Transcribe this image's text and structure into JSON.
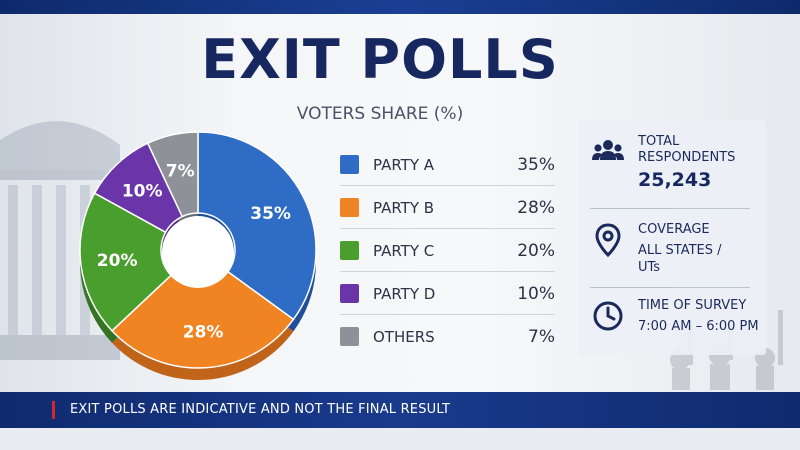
{
  "title": "EXIT POLLS",
  "chart_data": {
    "type": "pie",
    "title": "VOTERS SHARE (%)",
    "donut": true,
    "categories": [
      "PARTY A",
      "PARTY B",
      "PARTY C",
      "PARTY D",
      "OTHERS"
    ],
    "values": [
      35,
      28,
      20,
      10,
      7
    ],
    "labels": [
      "35%",
      "28%",
      "20%",
      "10%",
      "7%"
    ],
    "colors": [
      "#2f6cc6",
      "#f08423",
      "#4a9e2e",
      "#6a35a8",
      "#8e9197"
    ],
    "shadow_colors": [
      "#1f4f9a",
      "#c0641a",
      "#357423",
      "#4d2580",
      "#6a6d72"
    ],
    "legend_position": "right"
  },
  "stats": {
    "respondents": {
      "label_line1": "TOTAL",
      "label_line2": "RESPONDENTS",
      "value": "25,243",
      "icon": "people-group-icon"
    },
    "coverage": {
      "label": "COVERAGE",
      "value_line1": "ALL STATES /",
      "value_line2": "UTs",
      "icon": "map-pin-icon"
    },
    "time": {
      "label": "TIME OF SURVEY",
      "value": "7:00 AM – 6:00 PM",
      "icon": "clock-icon"
    }
  },
  "ticker": {
    "text": "EXIT POLLS ARE INDICATIVE AND NOT THE FINAL RESULT"
  }
}
